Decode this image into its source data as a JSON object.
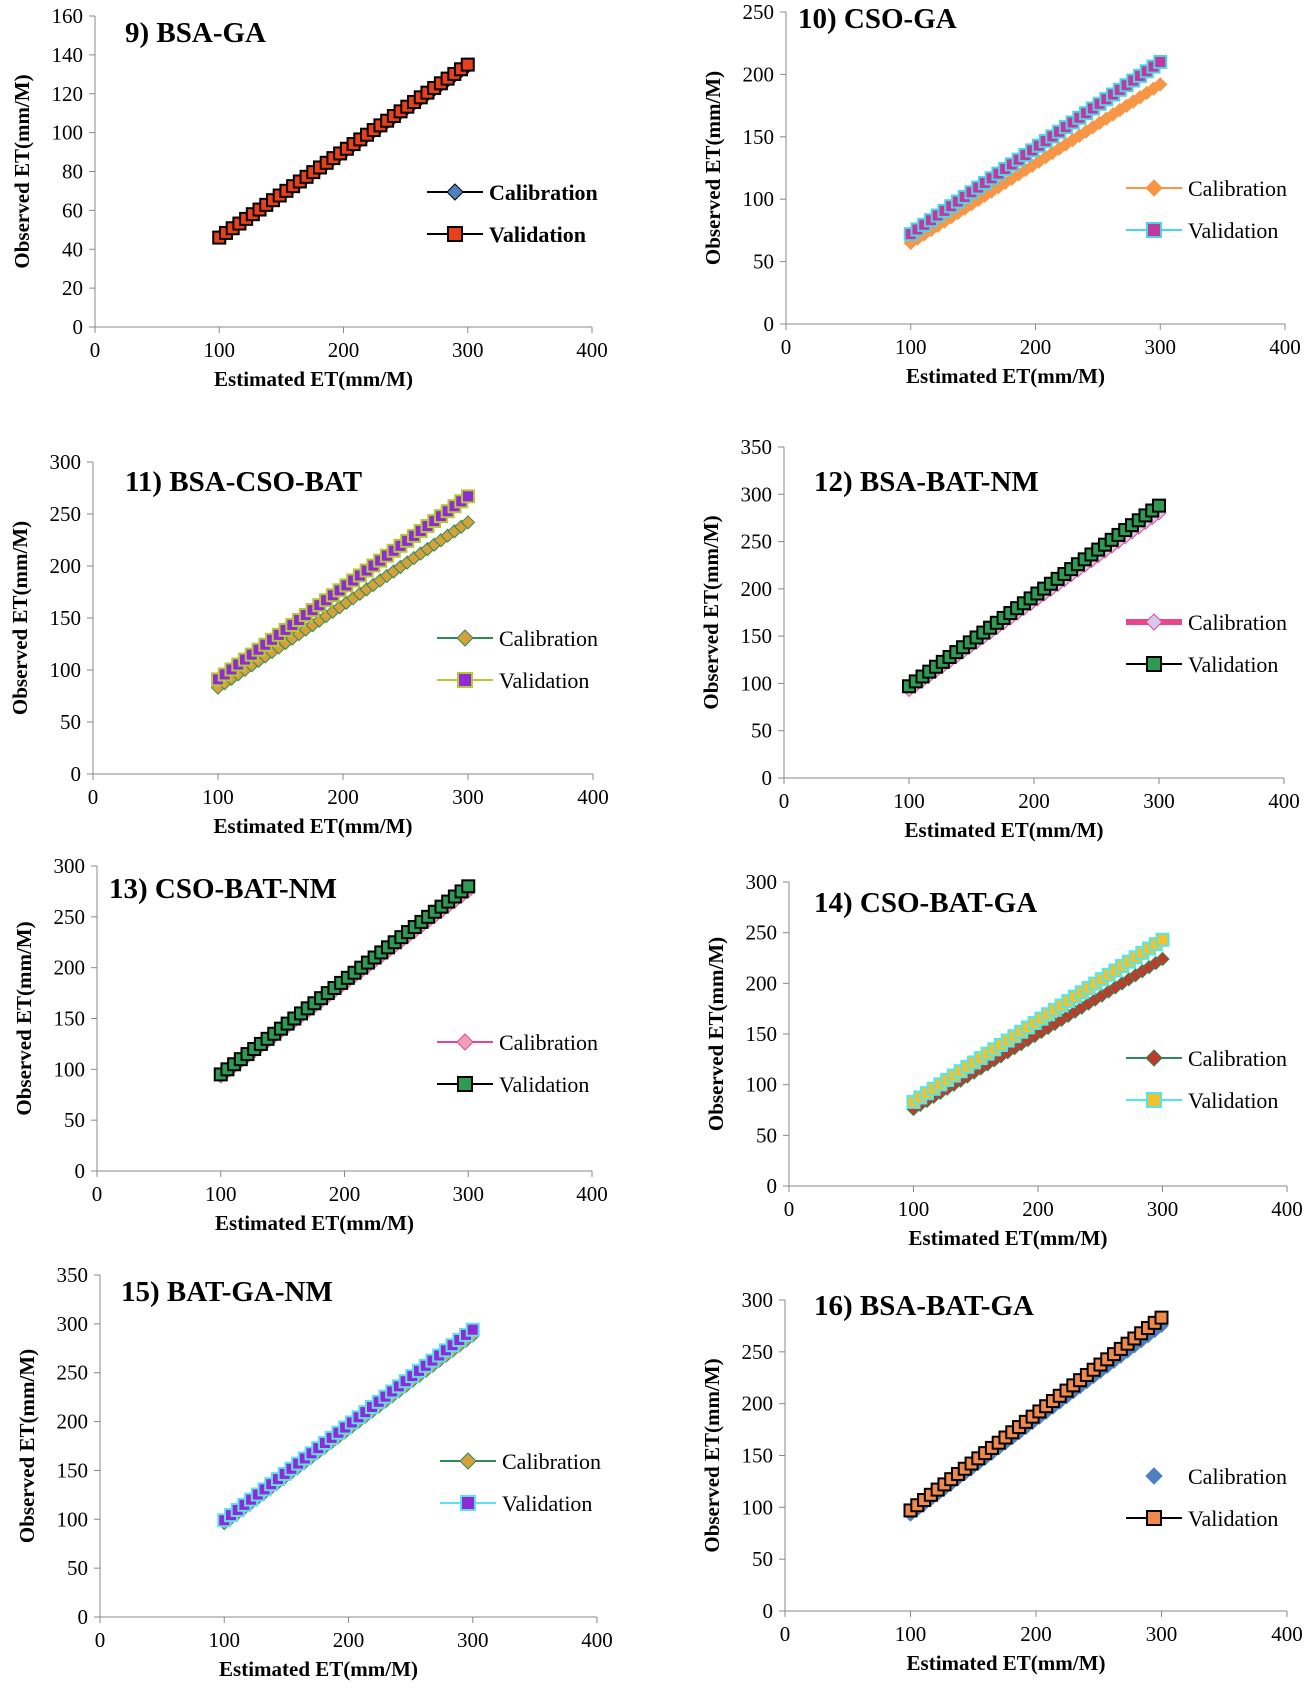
{
  "figure": {
    "xlabel": "Estimated ET(mm/M)",
    "ylabel": "Observed ET(mm/M)",
    "x_ticks": [
      0,
      100,
      200,
      300,
      400
    ],
    "xlim": [
      0,
      400
    ]
  },
  "chart_data": [
    {
      "type": "scatter",
      "title": "9) BSA-GA",
      "xlabel": "Estimated ET(mm/M)",
      "ylabel": "Observed ET(mm/M)",
      "xlim": [
        0,
        400
      ],
      "ylim": [
        0,
        160
      ],
      "y_ticks": [
        0,
        20,
        40,
        60,
        80,
        100,
        120,
        140,
        160
      ],
      "legend_bold": true,
      "series": [
        {
          "name": "Calibration",
          "marker": "diamond",
          "color": "#4f81bd",
          "line_color": "#000000",
          "x_range": [
            100,
            300
          ],
          "y_range": [
            46,
            134
          ]
        },
        {
          "name": "Validation",
          "marker": "square",
          "color": "#e8401c",
          "line_color": "#000000",
          "x_range": [
            100,
            300
          ],
          "y_range": [
            46,
            135
          ]
        }
      ]
    },
    {
      "type": "scatter",
      "title": "10) CSO-GA",
      "xlabel": "Estimated ET(mm/M)",
      "ylabel": "Observed ET(mm/M)",
      "xlim": [
        0,
        400
      ],
      "ylim": [
        0,
        250
      ],
      "y_ticks": [
        0,
        50,
        100,
        150,
        200,
        250
      ],
      "legend_bold": false,
      "series": [
        {
          "name": "Calibration",
          "marker": "diamond",
          "color": "#f79646",
          "line_color": "#f79646",
          "x_range": [
            100,
            300
          ],
          "y_range": [
            65,
            192
          ]
        },
        {
          "name": "Validation",
          "marker": "square",
          "color": "#c0399f",
          "line_color": "#4bd6e8",
          "x_range": [
            100,
            300
          ],
          "y_range": [
            72,
            210
          ]
        }
      ]
    },
    {
      "type": "scatter",
      "title": "11) BSA-CSO-BAT",
      "xlabel": "Estimated ET(mm/M)",
      "ylabel": "Observed ET(mm/M)",
      "xlim": [
        0,
        400
      ],
      "ylim": [
        0,
        300
      ],
      "y_ticks": [
        0,
        50,
        100,
        150,
        200,
        250,
        300
      ],
      "legend_bold": false,
      "series": [
        {
          "name": "Calibration",
          "marker": "diamond",
          "color": "#d6a13c",
          "line_color": "#2e8b57",
          "x_range": [
            100,
            300
          ],
          "y_range": [
            83,
            242
          ]
        },
        {
          "name": "Validation",
          "marker": "square",
          "color": "#8e2bd6",
          "line_color": "#b5c932",
          "x_range": [
            100,
            300
          ],
          "y_range": [
            91,
            267
          ]
        }
      ]
    },
    {
      "type": "scatter",
      "title": "12) BSA-BAT-NM",
      "xlabel": "Estimated ET(mm/M)",
      "ylabel": "Observed ET(mm/M)",
      "xlim": [
        0,
        400
      ],
      "ylim": [
        0,
        350
      ],
      "y_ticks": [
        0,
        50,
        100,
        150,
        200,
        250,
        300,
        350
      ],
      "legend_bold": false,
      "series": [
        {
          "name": "Calibration",
          "marker": "diamond",
          "color": "#d8c7ee",
          "line_color": "#e8458a",
          "x_range": [
            100,
            300
          ],
          "y_range": [
            93,
            280
          ]
        },
        {
          "name": "Validation",
          "marker": "square",
          "color": "#2f9a52",
          "line_color": "#000000",
          "x_range": [
            100,
            300
          ],
          "y_range": [
            97,
            288
          ]
        }
      ]
    },
    {
      "type": "scatter",
      "title": "13) CSO-BAT-NM",
      "xlabel": "Estimated ET(mm/M)",
      "ylabel": "Observed ET(mm/M)",
      "xlim": [
        0,
        400
      ],
      "ylim": [
        0,
        300
      ],
      "y_ticks": [
        0,
        50,
        100,
        150,
        200,
        250,
        300
      ],
      "legend_bold": false,
      "series": [
        {
          "name": "Calibration",
          "marker": "diamond",
          "color": "#f0a0b8",
          "line_color": "#e8458a",
          "x_range": [
            100,
            300
          ],
          "y_range": [
            93,
            275
          ]
        },
        {
          "name": "Validation",
          "marker": "square",
          "color": "#2f9a52",
          "line_color": "#000000",
          "x_range": [
            100,
            300
          ],
          "y_range": [
            95,
            280
          ]
        }
      ]
    },
    {
      "type": "scatter",
      "title": "14) CSO-BAT-GA",
      "xlabel": "Estimated ET(mm/M)",
      "ylabel": "Observed ET(mm/M)",
      "xlim": [
        0,
        400
      ],
      "ylim": [
        0,
        300
      ],
      "y_ticks": [
        0,
        50,
        100,
        150,
        200,
        250,
        300
      ],
      "legend_bold": false,
      "series": [
        {
          "name": "Calibration",
          "marker": "diamond",
          "color": "#c0392b",
          "line_color": "#2e8b57",
          "x_range": [
            100,
            300
          ],
          "y_range": [
            76,
            224
          ]
        },
        {
          "name": "Validation",
          "marker": "square",
          "color": "#f2c12e",
          "line_color": "#4fe8f0",
          "x_range": [
            100,
            300
          ],
          "y_range": [
            83,
            243
          ]
        }
      ]
    },
    {
      "type": "scatter",
      "title": "15) BAT-GA-NM",
      "xlabel": "Estimated ET(mm/M)",
      "ylabel": "Observed ET(mm/M)",
      "xlim": [
        0,
        400
      ],
      "ylim": [
        0,
        350
      ],
      "y_ticks": [
        0,
        50,
        100,
        150,
        200,
        250,
        300,
        350
      ],
      "legend_bold": false,
      "series": [
        {
          "name": "Calibration",
          "marker": "diamond",
          "color": "#d6a13c",
          "line_color": "#2e8b57",
          "x_range": [
            100,
            300
          ],
          "y_range": [
            96,
            288
          ]
        },
        {
          "name": "Validation",
          "marker": "square",
          "color": "#8e2bd6",
          "line_color": "#5fe0ef",
          "x_range": [
            100,
            300
          ],
          "y_range": [
            99,
            294
          ]
        }
      ]
    },
    {
      "type": "scatter",
      "title": "16) BSA-BAT-GA",
      "xlabel": "Estimated ET(mm/M)",
      "ylabel": "Observed ET(mm/M)",
      "xlim": [
        0,
        400
      ],
      "ylim": [
        0,
        300
      ],
      "y_ticks": [
        0,
        50,
        100,
        150,
        200,
        250,
        300
      ],
      "legend_bold": false,
      "series": [
        {
          "name": "Calibration",
          "marker": "diamond",
          "color": "#4f7fc0",
          "line_color": null,
          "x_range": [
            100,
            300
          ],
          "y_range": [
            93,
            275
          ]
        },
        {
          "name": "Validation",
          "marker": "square",
          "color": "#ef8a4c",
          "line_color": "#000000",
          "x_range": [
            100,
            300
          ],
          "y_range": [
            97,
            283
          ]
        }
      ]
    }
  ]
}
